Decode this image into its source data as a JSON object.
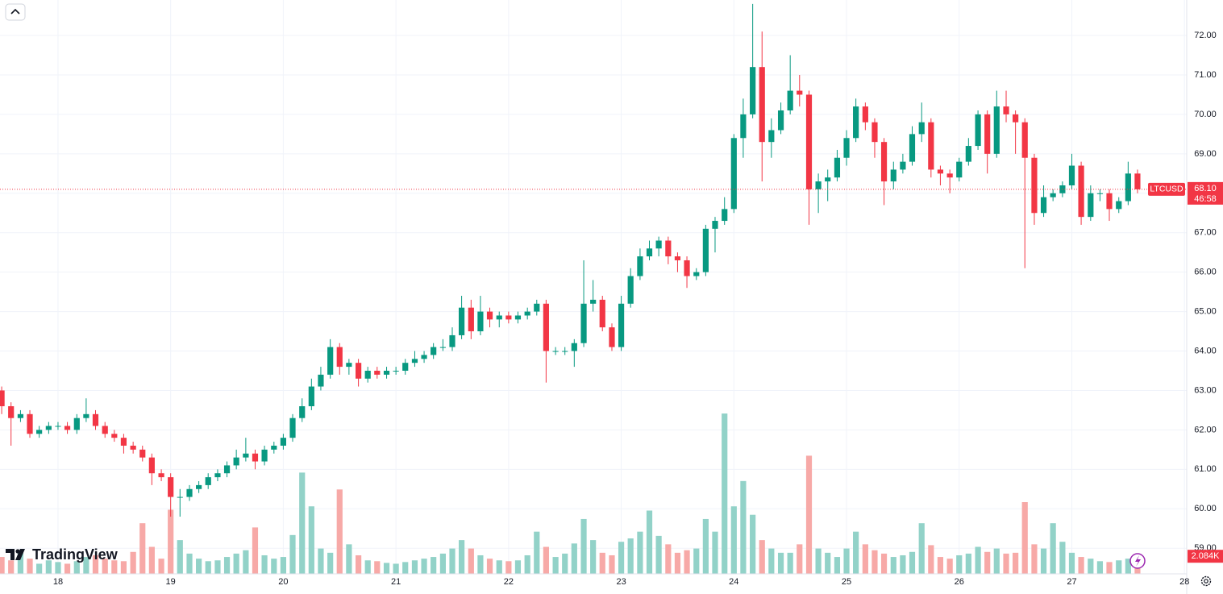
{
  "chart_data": {
    "type": "candlestick",
    "symbol": "LTCUSD",
    "brand": "TradingView",
    "countdown": "46:58",
    "last_label": "68.10",
    "volume_last_label": "2.084K",
    "up_color": "#089981",
    "down_color": "#f23645",
    "volume_up_color": "#92d2c8",
    "volume_down_color": "#f7a9a7",
    "grid": true,
    "xlim": [
      17.485,
      28.02
    ],
    "xticks": [
      18,
      19,
      20,
      21,
      22,
      23,
      24,
      25,
      26,
      27,
      28
    ],
    "ylim": [
      58.35,
      72.9
    ],
    "yticks": [
      {
        "value": 59,
        "label": "59.00"
      },
      {
        "value": 60,
        "label": "60.00"
      },
      {
        "value": 61,
        "label": "61.00"
      },
      {
        "value": 62,
        "label": "62.00"
      },
      {
        "value": 63,
        "label": "63.00"
      },
      {
        "value": 64,
        "label": "64.00"
      },
      {
        "value": 65,
        "label": "65.00"
      },
      {
        "value": 66,
        "label": "66.00"
      },
      {
        "value": 67,
        "label": "67.00"
      },
      {
        "value": 68,
        "label": "68.00"
      },
      {
        "value": 69,
        "label": "69.00"
      },
      {
        "value": 70,
        "label": "70.00"
      },
      {
        "value": 71,
        "label": "71.00"
      },
      {
        "value": 72,
        "label": "72.00"
      }
    ],
    "volume_lim": [
      0,
      68
    ],
    "x": [
      17.5,
      17.583,
      17.667,
      17.75,
      17.833,
      17.917,
      18,
      18.083,
      18.167,
      18.25,
      18.333,
      18.417,
      18.5,
      18.583,
      18.667,
      18.75,
      18.833,
      18.917,
      19,
      19.083,
      19.167,
      19.25,
      19.333,
      19.417,
      19.5,
      19.583,
      19.667,
      19.75,
      19.833,
      19.917,
      20,
      20.083,
      20.167,
      20.25,
      20.333,
      20.417,
      20.5,
      20.583,
      20.667,
      20.75,
      20.833,
      20.917,
      21,
      21.083,
      21.167,
      21.25,
      21.333,
      21.417,
      21.5,
      21.583,
      21.667,
      21.75,
      21.833,
      21.917,
      22,
      22.083,
      22.167,
      22.25,
      22.333,
      22.417,
      22.5,
      22.583,
      22.667,
      22.75,
      22.833,
      22.917,
      23,
      23.083,
      23.167,
      23.25,
      23.333,
      23.417,
      23.5,
      23.583,
      23.667,
      23.75,
      23.833,
      23.917,
      24,
      24.083,
      24.167,
      24.25,
      24.333,
      24.417,
      24.5,
      24.583,
      24.667,
      24.75,
      24.833,
      24.917,
      25,
      25.083,
      25.167,
      25.25,
      25.333,
      25.417,
      25.5,
      25.583,
      25.667,
      25.75,
      25.833,
      25.917,
      26,
      26.083,
      26.167,
      26.25,
      26.333,
      26.417,
      26.5,
      26.583,
      26.667,
      26.75,
      26.833,
      26.917,
      27,
      27.083,
      27.167,
      27.25,
      27.333,
      27.417,
      27.5,
      27.583
    ],
    "open": [
      63.0,
      62.6,
      62.3,
      62.4,
      61.9,
      62.0,
      62.1,
      62.1,
      62.0,
      62.3,
      62.4,
      62.1,
      61.9,
      61.8,
      61.6,
      61.5,
      61.3,
      60.9,
      60.8,
      60.3,
      60.3,
      60.5,
      60.6,
      60.8,
      60.9,
      61.1,
      61.3,
      61.4,
      61.2,
      61.5,
      61.6,
      61.8,
      62.3,
      62.6,
      63.1,
      63.4,
      64.1,
      63.6,
      63.7,
      63.3,
      63.5,
      63.4,
      63.5,
      63.5,
      63.7,
      63.8,
      63.9,
      64.1,
      64.1,
      64.4,
      65.1,
      64.5,
      65.0,
      64.8,
      64.9,
      64.8,
      64.9,
      65.0,
      65.2,
      64.0,
      64.0,
      64.0,
      64.2,
      65.2,
      65.3,
      64.6,
      64.1,
      65.2,
      65.9,
      66.4,
      66.6,
      66.8,
      66.4,
      66.3,
      65.9,
      66.0,
      67.1,
      67.3,
      67.6,
      69.4,
      70.0,
      71.2,
      69.3,
      69.6,
      70.1,
      70.6,
      70.5,
      68.1,
      68.3,
      68.4,
      68.9,
      69.4,
      70.2,
      69.8,
      69.3,
      68.3,
      68.6,
      68.8,
      69.5,
      69.8,
      68.6,
      68.5,
      68.4,
      68.8,
      69.2,
      70.0,
      69.0,
      70.2,
      70.0,
      69.8,
      68.9,
      67.5,
      67.9,
      68.0,
      68.2,
      68.7,
      67.4,
      68.0,
      68.0,
      67.6,
      67.8,
      68.5
    ],
    "high": [
      63.1,
      62.7,
      62.5,
      62.5,
      62.1,
      62.2,
      62.2,
      62.2,
      62.4,
      62.8,
      62.5,
      62.2,
      62.0,
      61.9,
      61.7,
      61.6,
      61.4,
      61.0,
      60.9,
      60.5,
      60.6,
      60.7,
      60.9,
      61.0,
      61.2,
      61.5,
      61.8,
      61.5,
      61.6,
      61.7,
      61.9,
      62.4,
      62.8,
      63.3,
      63.6,
      64.3,
      64.2,
      63.8,
      63.8,
      63.6,
      63.6,
      63.6,
      63.6,
      63.8,
      64.0,
      64.0,
      64.2,
      64.3,
      64.6,
      65.4,
      65.3,
      65.4,
      65.1,
      65.0,
      65.0,
      65.0,
      65.1,
      65.3,
      65.3,
      64.1,
      64.1,
      64.3,
      66.3,
      65.8,
      65.4,
      64.7,
      65.4,
      66.1,
      66.6,
      66.8,
      66.9,
      66.9,
      66.5,
      66.4,
      66.1,
      67.2,
      67.4,
      67.9,
      69.5,
      70.4,
      72.8,
      72.1,
      69.9,
      70.3,
      71.5,
      71.0,
      70.6,
      68.5,
      68.6,
      69.1,
      69.6,
      70.4,
      70.3,
      69.9,
      69.4,
      68.8,
      69.0,
      69.7,
      70.3,
      69.9,
      68.7,
      68.6,
      68.9,
      69.4,
      70.1,
      70.1,
      70.6,
      70.6,
      70.1,
      69.9,
      69.0,
      68.2,
      68.1,
      68.3,
      69.0,
      68.8,
      68.2,
      68.1,
      68.1,
      67.9,
      68.8,
      68.6
    ],
    "low": [
      62.4,
      61.6,
      62.2,
      61.8,
      61.8,
      61.9,
      62.0,
      61.9,
      61.9,
      62.2,
      62.0,
      61.8,
      61.7,
      61.4,
      61.4,
      61.2,
      60.6,
      60.7,
      59.8,
      59.8,
      60.2,
      60.4,
      60.5,
      60.7,
      60.8,
      61.0,
      61.2,
      61.0,
      61.1,
      61.4,
      61.5,
      61.7,
      62.2,
      62.5,
      63.0,
      63.3,
      63.4,
      63.4,
      63.1,
      63.2,
      63.3,
      63.3,
      63.4,
      63.4,
      63.6,
      63.7,
      63.8,
      64.0,
      64.0,
      64.3,
      64.3,
      64.4,
      64.6,
      64.6,
      64.7,
      64.7,
      64.8,
      64.9,
      63.2,
      63.9,
      63.9,
      63.6,
      64.1,
      65.0,
      64.5,
      64.0,
      64.0,
      65.1,
      65.8,
      66.3,
      66.4,
      66.2,
      66.0,
      65.6,
      65.8,
      65.9,
      66.5,
      67.2,
      67.5,
      68.9,
      69.9,
      68.3,
      68.9,
      69.5,
      70.0,
      70.2,
      67.2,
      67.5,
      67.8,
      68.3,
      68.7,
      69.3,
      69.6,
      68.9,
      67.7,
      68.1,
      68.5,
      68.7,
      69.3,
      68.4,
      68.2,
      68.0,
      68.3,
      68.7,
      69.1,
      68.5,
      68.9,
      69.8,
      69.0,
      66.1,
      67.2,
      67.4,
      67.8,
      67.9,
      68.1,
      67.2,
      67.3,
      67.8,
      67.3,
      67.5,
      67.7,
      68.0
    ],
    "close": [
      62.6,
      62.3,
      62.4,
      61.9,
      62.0,
      62.1,
      62.1,
      62.0,
      62.3,
      62.4,
      62.1,
      61.9,
      61.8,
      61.6,
      61.5,
      61.3,
      60.9,
      60.8,
      60.3,
      60.3,
      60.5,
      60.6,
      60.8,
      60.9,
      61.1,
      61.3,
      61.4,
      61.2,
      61.5,
      61.6,
      61.8,
      62.3,
      62.6,
      63.1,
      63.4,
      64.1,
      63.6,
      63.7,
      63.3,
      63.5,
      63.4,
      63.5,
      63.5,
      63.7,
      63.8,
      63.9,
      64.1,
      64.1,
      64.4,
      65.1,
      64.5,
      65.0,
      64.8,
      64.9,
      64.8,
      64.9,
      65.0,
      65.2,
      64.0,
      64.0,
      64.0,
      64.2,
      65.2,
      65.3,
      64.6,
      64.1,
      65.2,
      65.9,
      66.4,
      66.6,
      66.8,
      66.4,
      66.3,
      65.9,
      66.0,
      67.1,
      67.3,
      67.6,
      69.4,
      70.0,
      71.2,
      69.3,
      69.6,
      70.1,
      70.6,
      70.5,
      68.1,
      68.3,
      68.4,
      68.9,
      69.4,
      70.2,
      69.8,
      69.3,
      68.3,
      68.6,
      68.8,
      69.5,
      69.8,
      68.6,
      68.5,
      68.4,
      68.8,
      69.2,
      70.0,
      69.0,
      70.2,
      70.0,
      69.8,
      68.9,
      67.5,
      67.9,
      68.0,
      68.2,
      68.7,
      67.4,
      68.0,
      68.0,
      67.6,
      67.8,
      68.5,
      68.1
    ],
    "volume": [
      2.0,
      1.6,
      2.8,
      1.8,
      1.2,
      1.6,
      1.4,
      1.2,
      1.5,
      2.0,
      2.2,
      1.8,
      1.6,
      1.5,
      2.6,
      6.0,
      3.2,
      1.8,
      7.6,
      4.0,
      2.4,
      1.8,
      1.5,
      1.6,
      2.0,
      2.4,
      2.8,
      5.5,
      2.2,
      1.8,
      2.0,
      4.6,
      12.0,
      8.0,
      3.0,
      2.5,
      10.0,
      3.5,
      2.2,
      1.6,
      1.5,
      1.3,
      1.2,
      1.4,
      1.6,
      1.8,
      2.0,
      2.4,
      3.0,
      4.0,
      3.0,
      2.2,
      1.8,
      1.6,
      1.5,
      1.6,
      2.2,
      5.0,
      3.2,
      2.0,
      2.4,
      3.6,
      6.5,
      4.0,
      2.5,
      2.2,
      3.8,
      4.2,
      5.0,
      7.5,
      4.5,
      3.5,
      2.5,
      2.8,
      3.0,
      6.5,
      5.0,
      19.0,
      8.0,
      11.0,
      7.0,
      4.0,
      3.0,
      2.5,
      2.5,
      3.5,
      14.0,
      3.0,
      2.5,
      2.0,
      3.0,
      5.0,
      3.5,
      2.8,
      2.4,
      2.0,
      2.2,
      2.6,
      6.0,
      3.4,
      2.0,
      1.8,
      2.2,
      2.4,
      3.2,
      2.6,
      3.0,
      2.4,
      2.5,
      8.5,
      3.5,
      3.0,
      6.0,
      3.8,
      2.5,
      2.0,
      1.8,
      1.5,
      1.4,
      1.6,
      1.8,
      2.084
    ]
  }
}
